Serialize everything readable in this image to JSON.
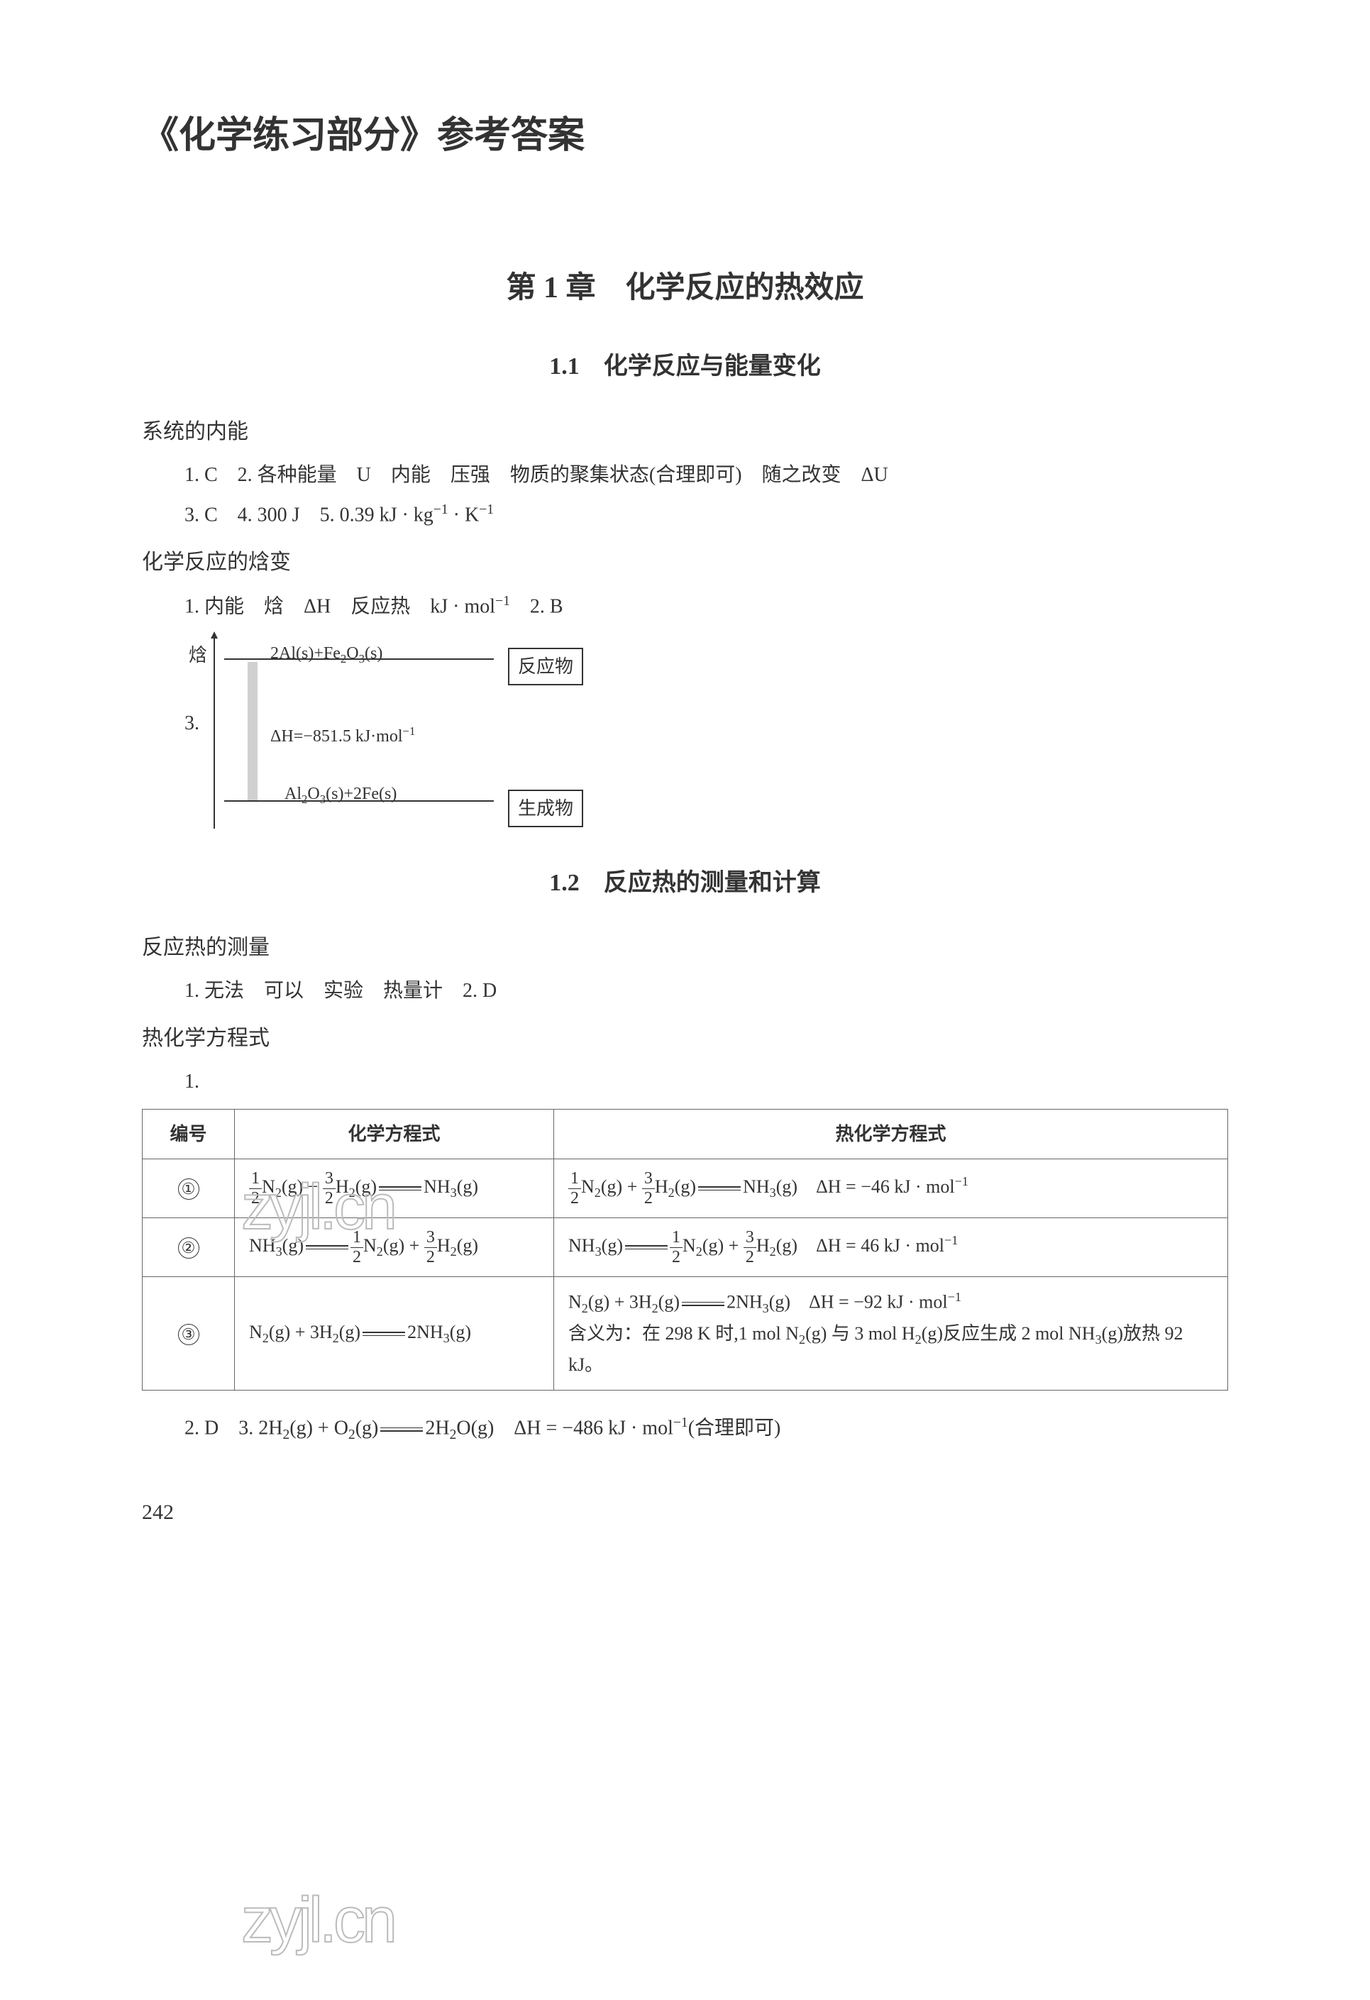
{
  "mainTitle": "《化学练习部分》参考答案",
  "chapterTitle": "第 1 章　化学反应的热效应",
  "section1": {
    "title": "1.1　化学反应与能量变化",
    "sub1": {
      "heading": "系统的内能",
      "line1": "1. C　2. 各种能量　U　内能　压强　物质的聚集状态(合理即可)　随之改变　ΔU",
      "line2_prefix": "3. C　4. 300 J　5. 0.39 kJ · kg",
      "line2_exp1": "−1",
      "line2_mid": " · K",
      "line2_exp2": "−1"
    },
    "sub2": {
      "heading": "化学反应的焓变",
      "line1_prefix": "1. 内能　焓　ΔH　反应热　kJ · mol",
      "line1_exp": "−1",
      "line1_suffix": "　2. B",
      "diagram": {
        "number": "3.",
        "yLabel": "焓",
        "topFormula_pre": "2Al(s)+Fe",
        "topFormula_sub1": "2",
        "topFormula_mid": "O",
        "topFormula_sub2": "3",
        "topFormula_suf": "(s)",
        "reactantBox": "反应物",
        "deltaH_pre": "ΔH=−851.5 kJ·mol",
        "deltaH_exp": "−1",
        "bottomFormula_pre": "Al",
        "bottomFormula_sub1": "2",
        "bottomFormula_mid": "O",
        "bottomFormula_sub2": "3",
        "bottomFormula_suf": "(s)+2Fe(s)",
        "productBox": "生成物"
      }
    }
  },
  "section2": {
    "title": "1.2　反应热的测量和计算",
    "sub1": {
      "heading": "反应热的测量",
      "line1": "1. 无法　可以　实验　热量计　2. D"
    },
    "sub2": {
      "heading": "热化学方程式",
      "item1": "1.",
      "table": {
        "headers": {
          "num": "编号",
          "eq": "化学方程式",
          "thermo": "热化学方程式"
        },
        "row1": {
          "num": "①",
          "eq_parts": {
            "n2": "N",
            "n2sub": "2",
            "n2g": "(g) + ",
            "h2": "H",
            "h2sub": "2",
            "h2g": "(g)",
            "nh3": "NH",
            "nh3sub": "3",
            "nh3g": "(g)"
          },
          "dh_pre": "ΔH = −46 kJ · mol",
          "dh_exp": "−1",
          "frac1_num": "1",
          "frac1_den": "2",
          "frac2_num": "3",
          "frac2_den": "2"
        },
        "row2": {
          "num": "②",
          "eq_parts": {
            "nh3": "NH",
            "nh3sub": "3",
            "nh3g": "(g)",
            "n2": "N",
            "n2sub": "2",
            "n2g": "(g) + ",
            "h2": "H",
            "h2sub": "2",
            "h2g": "(g)"
          },
          "dh_pre": "ΔH = 46 kJ · mol",
          "dh_exp": "−1",
          "frac1_num": "1",
          "frac1_den": "2",
          "frac2_num": "3",
          "frac2_den": "2"
        },
        "row3": {
          "num": "③",
          "eq_parts": {
            "n2": "N",
            "n2sub": "2",
            "n2g": "(g) + 3H",
            "h2sub": "2",
            "h2g": "(g)",
            "nh3": "2NH",
            "nh3sub": "3",
            "nh3g": "(g)"
          },
          "dh_pre": "ΔH = −92 kJ · mol",
          "dh_exp": "−1",
          "meaning_pre": "含义为：在 298 K 时,1 mol N",
          "meaning_sub1": "2",
          "meaning_mid1": "(g) 与 3 mol H",
          "meaning_sub2": "2",
          "meaning_mid2": "(g)反应生成 2 mol NH",
          "meaning_sub3": "3",
          "meaning_suf": "(g)放热 92 kJ。"
        }
      },
      "line2_pre": "2. D　3. 2H",
      "line2_sub1": "2",
      "line2_mid1": "(g) + O",
      "line2_sub2": "2",
      "line2_mid2": "(g)",
      "line2_mid3": "2H",
      "line2_sub3": "2",
      "line2_mid4": "O(g)　ΔH = −486 kJ · mol",
      "line2_exp": "−1",
      "line2_suf": "(合理即可)"
    }
  },
  "watermark": "zyjl.cn",
  "pageNumber": "242",
  "colors": {
    "text": "#333333",
    "border": "#666666",
    "background": "#ffffff",
    "watermark": "#bbbbbb",
    "bar": "#d0d0d0"
  }
}
